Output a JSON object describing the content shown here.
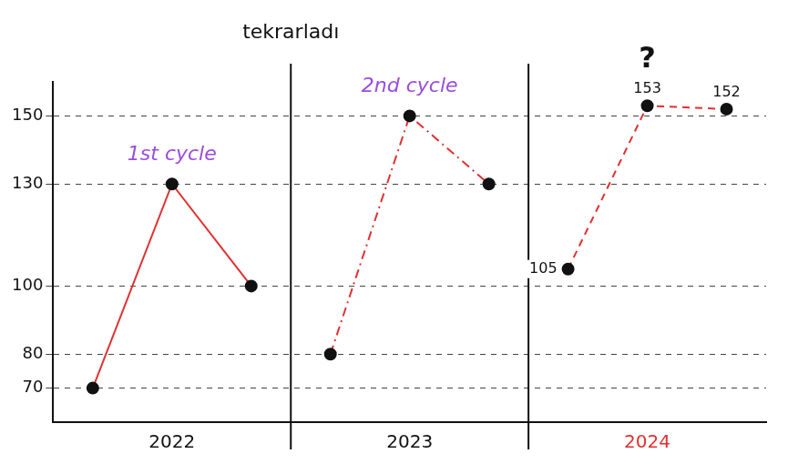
{
  "chart_data": {
    "type": "line",
    "categories": [
      null,
      "2022",
      null,
      null,
      "2023",
      null,
      null,
      "2024",
      null
    ],
    "series": [
      {
        "name": "1st cycle",
        "color": "#e03131",
        "line_style": "solid",
        "marker": "circle",
        "values": [
          70,
          130,
          100,
          null,
          null,
          null,
          null,
          null,
          null
        ]
      },
      {
        "name": "2nd cycle",
        "color": "#e03131",
        "line_style": "dashdot",
        "marker": "circle",
        "values": [
          null,
          null,
          null,
          80,
          150,
          130,
          null,
          null,
          null
        ]
      },
      {
        "name": "?",
        "color": "#e03131",
        "line_style": "dashed",
        "marker": "circle",
        "data_labels": true,
        "values": [
          null,
          null,
          null,
          null,
          null,
          null,
          105,
          153,
          152
        ]
      }
    ],
    "ylim": [
      60,
      160
    ],
    "yticks": [
      70,
      80,
      100,
      130,
      150
    ],
    "grid": true,
    "annotations": [
      {
        "text": "tekrarladı"
      }
    ]
  }
}
